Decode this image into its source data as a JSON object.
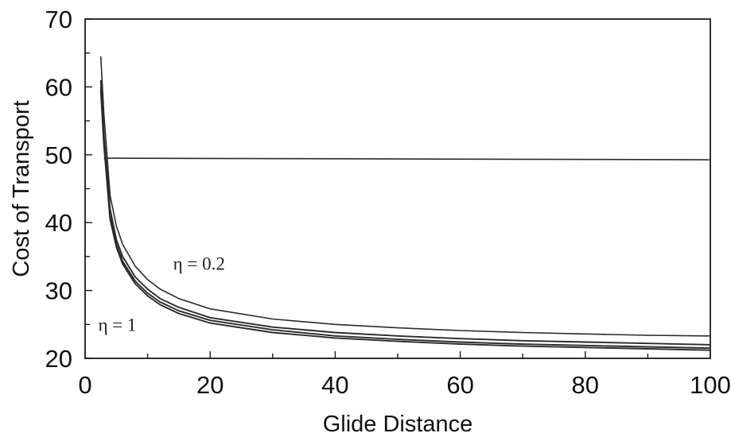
{
  "chart_data": {
    "type": "line",
    "title": "",
    "xlabel": "Glide Distance",
    "ylabel": "Cost of Transport",
    "xlim": [
      0,
      100
    ],
    "ylim": [
      20,
      70
    ],
    "xticks": [
      "0",
      "20",
      "40",
      "60",
      "80",
      "100"
    ],
    "yticks": [
      "20",
      "30",
      "40",
      "50",
      "60",
      "70"
    ],
    "grid": false,
    "legend": "none",
    "annotations": [
      {
        "text": "η = 0.2",
        "x": 17,
        "y": 34
      },
      {
        "text": "η = 1",
        "x": 4,
        "y": 25
      }
    ],
    "reference_line": {
      "y": 49.5
    },
    "series": [
      {
        "x": [
          2.5,
          3,
          4,
          5,
          6,
          8,
          10,
          12,
          15,
          20,
          30,
          40,
          50,
          60,
          70,
          80,
          90,
          100
        ],
        "values": [
          64.5,
          56,
          44,
          39.5,
          36.8,
          33.6,
          31.6,
          30.2,
          28.8,
          27.3,
          25.8,
          25.0,
          24.5,
          24.1,
          23.8,
          23.6,
          23.4,
          23.3
        ]
      },
      {
        "x": [
          2.5,
          3,
          4,
          5,
          6,
          8,
          10,
          12,
          15,
          20,
          30,
          40,
          50,
          60,
          70,
          80,
          90,
          100
        ],
        "values": [
          61,
          53,
          42,
          37.5,
          35.0,
          32.0,
          30.2,
          28.8,
          27.5,
          26.0,
          24.6,
          23.8,
          23.3,
          22.9,
          22.6,
          22.4,
          22.2,
          22.0
        ]
      },
      {
        "x": [
          2.5,
          3,
          4,
          5,
          6,
          8,
          10,
          12,
          15,
          20,
          30,
          40,
          50,
          60,
          70,
          80,
          90,
          100
        ],
        "values": [
          60,
          52,
          41,
          36.8,
          34.3,
          31.4,
          29.6,
          28.3,
          27.0,
          25.6,
          24.2,
          23.3,
          22.8,
          22.4,
          22.1,
          21.9,
          21.7,
          21.5
        ]
      },
      {
        "x": [
          2.5,
          3,
          4,
          5,
          6,
          8,
          10,
          12,
          15,
          20,
          30,
          40,
          50,
          60,
          70,
          80,
          90,
          100
        ],
        "values": [
          59.5,
          51.5,
          40.5,
          36.4,
          33.9,
          31.0,
          29.2,
          27.9,
          26.6,
          25.2,
          23.8,
          23.0,
          22.5,
          22.1,
          21.8,
          21.6,
          21.4,
          21.2
        ]
      }
    ],
    "colors": {
      "line": "#2a2a2a",
      "axis": "#1a1a1a",
      "background": "#ffffff"
    }
  }
}
